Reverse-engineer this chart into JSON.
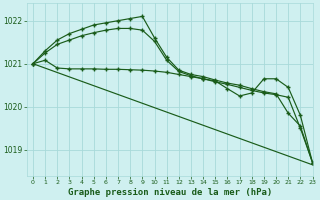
{
  "title": "Graphe pression niveau de la mer (hPa)",
  "bg_color": "#cff0f0",
  "grid_color": "#a8dada",
  "line_color": "#1a5c1a",
  "xlim": [
    -0.5,
    23
  ],
  "ylim": [
    1018.4,
    1022.4
  ],
  "yticks": [
    1019,
    1020,
    1021,
    1022
  ],
  "xticks": [
    0,
    1,
    2,
    3,
    4,
    5,
    6,
    7,
    8,
    9,
    10,
    11,
    12,
    13,
    14,
    15,
    16,
    17,
    18,
    19,
    20,
    21,
    22,
    23
  ],
  "series": [
    {
      "x": [
        0,
        1,
        2,
        3,
        4,
        5,
        6,
        7,
        8,
        9,
        10,
        11,
        12,
        13,
        14,
        15,
        16,
        17,
        18,
        19,
        20,
        21,
        22,
        23
      ],
      "y": [
        1021.0,
        1021.3,
        1021.55,
        1021.7,
        1021.8,
        1021.9,
        1021.95,
        1022.0,
        1022.05,
        1022.1,
        1021.6,
        1021.15,
        1020.85,
        1020.75,
        1020.7,
        1020.62,
        1020.55,
        1020.5,
        1020.42,
        1020.35,
        1020.3,
        1019.85,
        1019.55,
        1018.7
      ]
    },
    {
      "x": [
        0,
        1,
        2,
        3,
        4,
        5,
        6,
        7,
        8,
        9,
        10,
        11,
        12,
        13,
        14,
        15,
        16,
        17,
        18,
        19,
        20,
        21,
        22,
        23
      ],
      "y": [
        1021.0,
        1021.25,
        1021.45,
        1021.55,
        1021.65,
        1021.72,
        1021.78,
        1021.82,
        1021.82,
        1021.78,
        1021.52,
        1021.08,
        1020.82,
        1020.72,
        1020.65,
        1020.58,
        1020.52,
        1020.45,
        1020.38,
        1020.32,
        1020.28,
        1020.22,
        1019.5,
        1018.7
      ]
    },
    {
      "x": [
        0,
        1,
        2,
        3,
        4,
        5,
        6,
        7,
        8,
        9,
        10,
        11,
        12,
        13,
        14,
        15,
        16,
        17,
        18,
        19,
        20,
        21,
        22,
        23
      ],
      "y": [
        1021.0,
        1021.08,
        1020.9,
        1020.88,
        1020.88,
        1020.88,
        1020.87,
        1020.87,
        1020.86,
        1020.85,
        1020.83,
        1020.8,
        1020.75,
        1020.7,
        1020.65,
        1020.6,
        1020.42,
        1020.25,
        1020.32,
        1020.65,
        1020.65,
        1020.45,
        1019.8,
        1018.7
      ]
    },
    {
      "x": [
        0,
        23
      ],
      "y": [
        1021.0,
        1018.65
      ]
    }
  ]
}
